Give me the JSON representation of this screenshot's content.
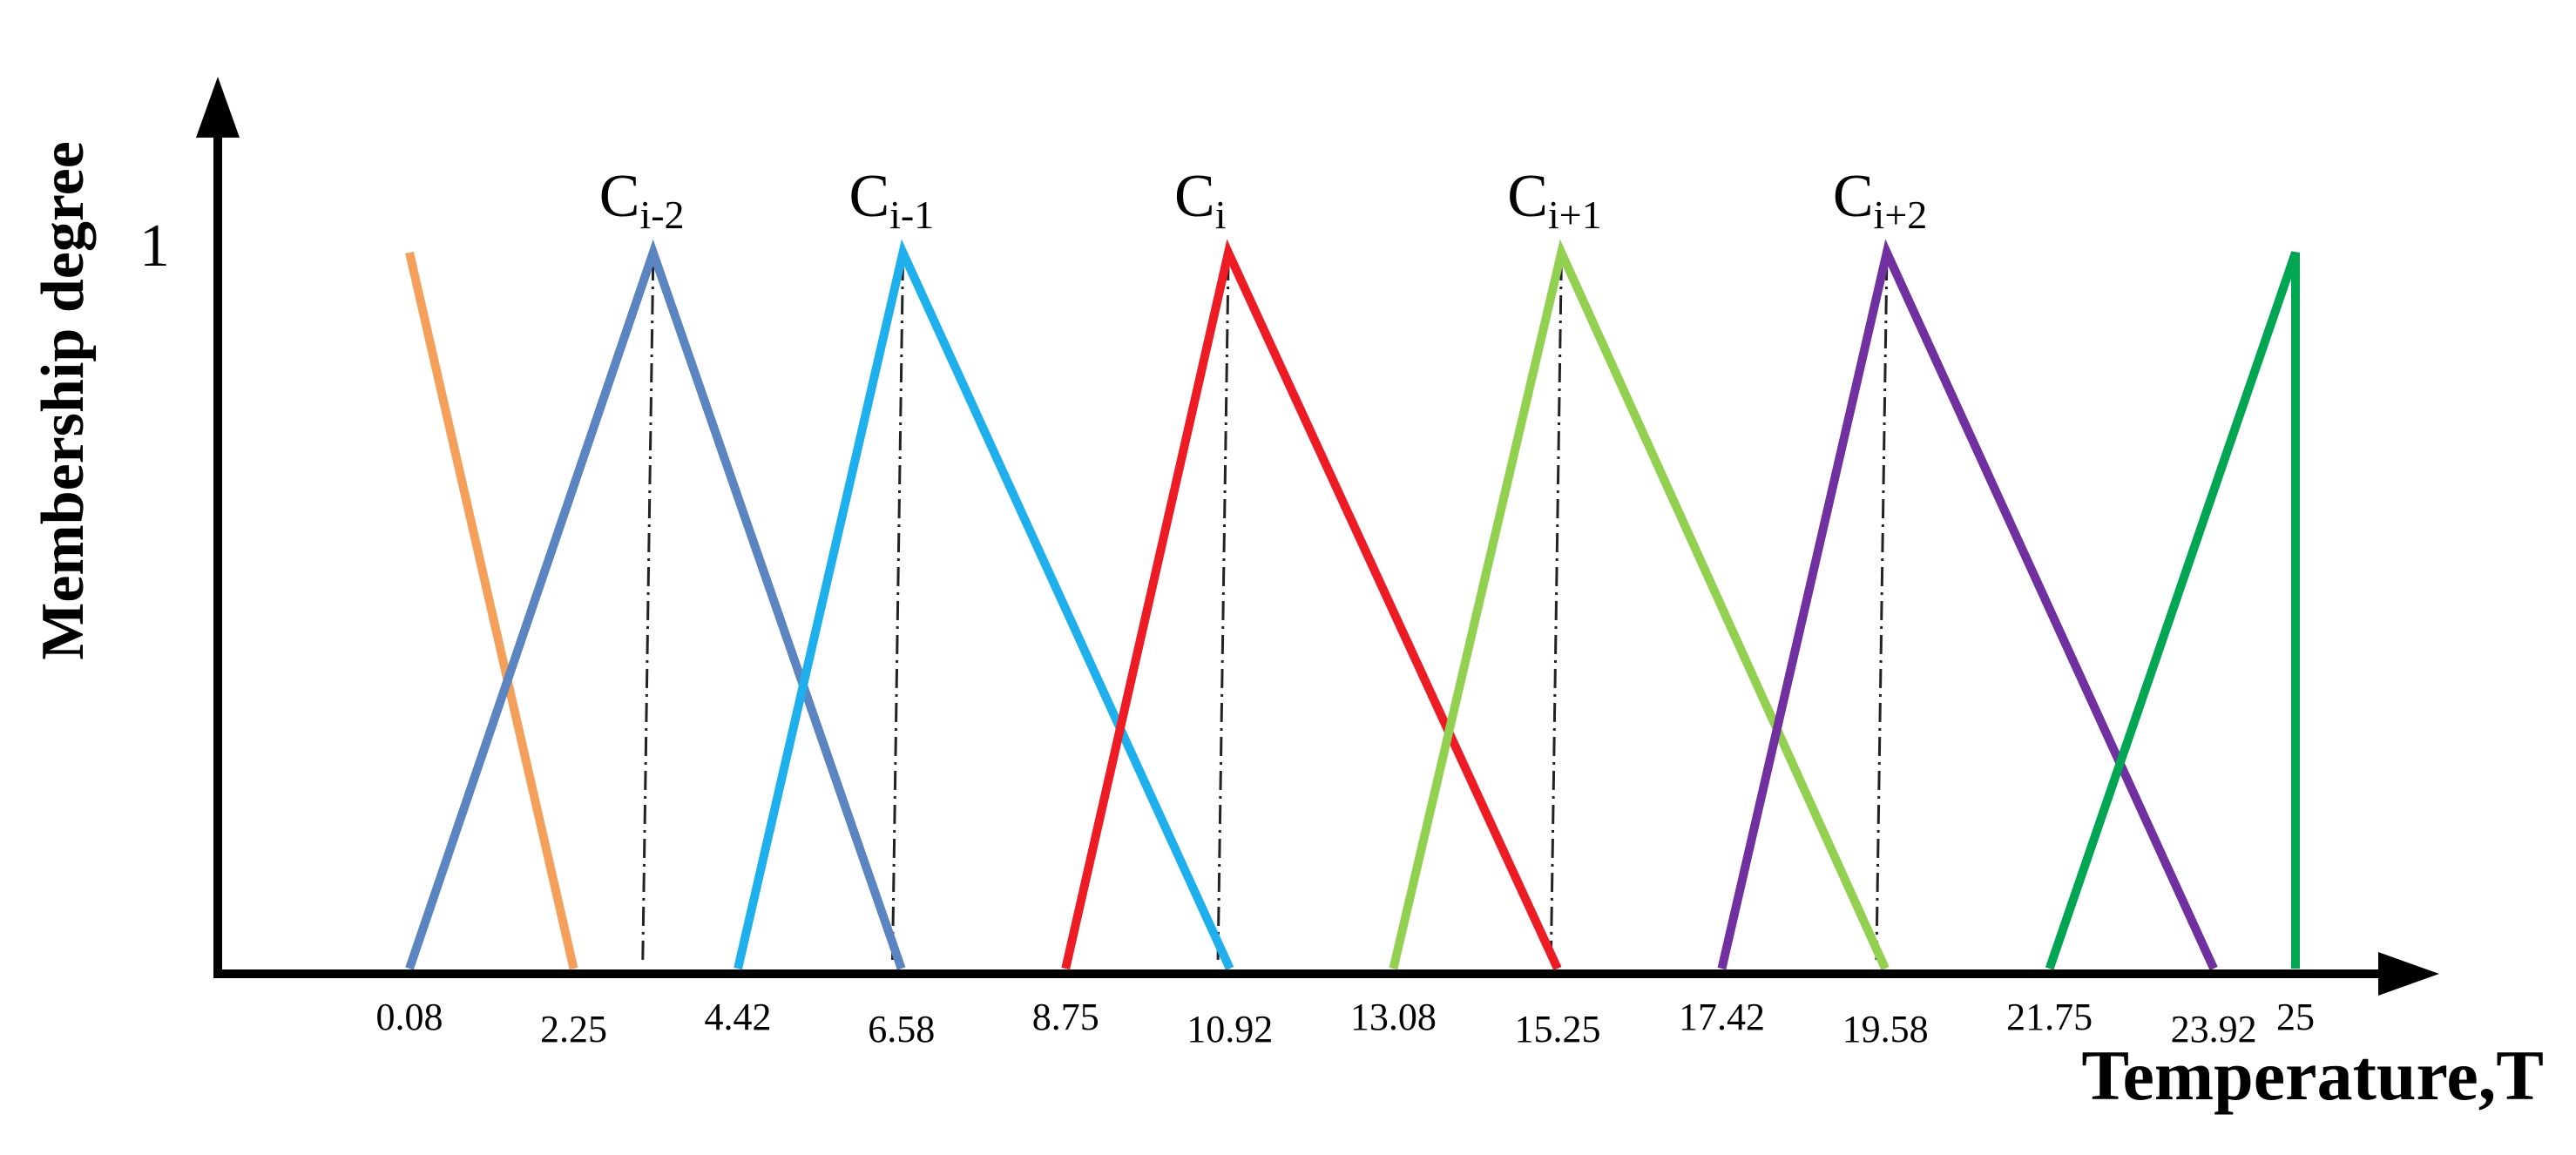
{
  "chart_data": {
    "type": "line",
    "title": "",
    "xlabel": "Temperature,T",
    "ylabel": "Membership degree",
    "y_tick_label": "1",
    "xlim": [
      0.08,
      25
    ],
    "ylim": [
      0,
      1
    ],
    "x_tick_labels": [
      "0.08",
      "2.25",
      "4.42",
      "6.58",
      "8.75",
      "10.92",
      "13.08",
      "15.25",
      "17.42",
      "19.58",
      "21.75",
      "23.92",
      "25"
    ],
    "peak_labels": [
      {
        "base": "C",
        "sub": "i-2"
      },
      {
        "base": "C",
        "sub": "i-1"
      },
      {
        "base": "C",
        "sub": "i"
      },
      {
        "base": "C",
        "sub": "i+1"
      },
      {
        "base": "C",
        "sub": "i+2"
      }
    ],
    "series": [
      {
        "color": "#F4A05A",
        "points": [
          [
            0.08,
            1
          ],
          [
            2.25,
            0
          ]
        ]
      },
      {
        "color": "#5B85C1",
        "points": [
          [
            0.08,
            0
          ],
          [
            3.3,
            1
          ],
          [
            6.58,
            0
          ]
        ],
        "peak_label_index": 0
      },
      {
        "color": "#1EB0EC",
        "points": [
          [
            4.42,
            0
          ],
          [
            6.6,
            1
          ],
          [
            10.92,
            0
          ]
        ],
        "peak_label_index": 1
      },
      {
        "color": "#ED1C24",
        "points": [
          [
            8.75,
            0
          ],
          [
            10.9,
            1
          ],
          [
            15.25,
            0
          ]
        ],
        "peak_label_index": 2
      },
      {
        "color": "#92D050",
        "points": [
          [
            13.08,
            0
          ],
          [
            15.3,
            1
          ],
          [
            19.58,
            0
          ]
        ],
        "peak_label_index": 3
      },
      {
        "color": "#7030A0",
        "points": [
          [
            17.42,
            0
          ],
          [
            19.6,
            1
          ],
          [
            23.92,
            0
          ]
        ],
        "peak_label_index": 4
      },
      {
        "color": "#00A651",
        "points": [
          [
            21.75,
            0
          ],
          [
            25,
            1
          ],
          [
            25,
            0
          ]
        ]
      }
    ]
  }
}
